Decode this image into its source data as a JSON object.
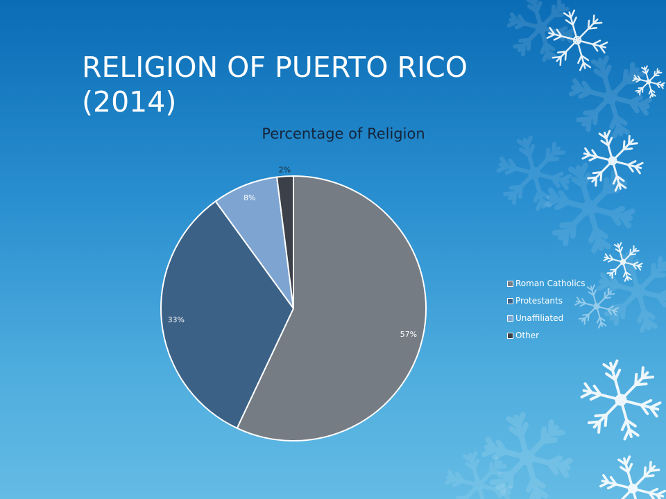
{
  "slide": {
    "title": "RELIGION OF PUERTO RICO (2014)",
    "background_colors": [
      "#0a6cb5",
      "#64bbe4"
    ],
    "decoration": "snowflake-pattern"
  },
  "chart_data": {
    "type": "pie",
    "title": "Percentage of Religion",
    "categories": [
      "Roman Catholics",
      "Protestants",
      "Unaffiliated",
      "Other"
    ],
    "values": [
      57,
      33,
      8,
      2
    ],
    "data_labels": [
      "57%",
      "33%",
      "8%",
      "2%"
    ],
    "colors": [
      "#767c84",
      "#3b6186",
      "#7ea5d2",
      "#3b4049"
    ],
    "legend_position": "right",
    "start_angle": "12 o'clock, clockwise"
  }
}
